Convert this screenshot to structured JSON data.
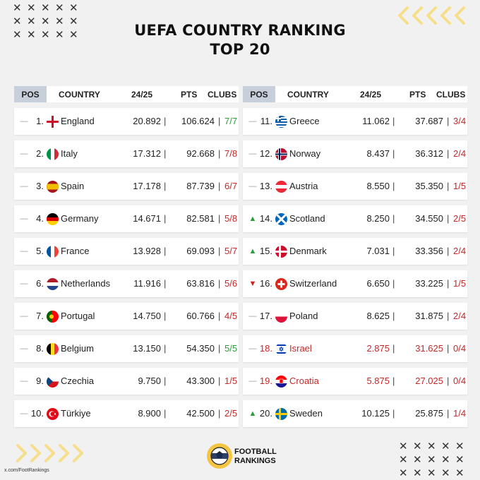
{
  "title": {
    "line1": "UEFA COUNTRY RANKING",
    "line2": "TOP 20"
  },
  "columns": {
    "pos": "POS",
    "country": "COUNTRY",
    "season": "24/25",
    "pts": "PTS",
    "clubs": "CLUBS"
  },
  "separator": "|",
  "colors": {
    "header_pos_bg": "#c7d0da",
    "accent_yellow": "#f5df8a",
    "green": "#2a9d3a",
    "red": "#c62828"
  },
  "left": [
    {
      "movement": "same",
      "rank": "1.",
      "flag": "england-flag",
      "country": "England",
      "season": "20.892",
      "pts": "106.624",
      "clubs": "7/7",
      "clubs_color": "green"
    },
    {
      "movement": "same",
      "rank": "2.",
      "flag": "italy-flag",
      "country": "Italy",
      "season": "17.312",
      "pts": "92.668",
      "clubs": "7/8",
      "clubs_color": "red"
    },
    {
      "movement": "same",
      "rank": "3.",
      "flag": "spain-flag",
      "country": "Spain",
      "season": "17.178",
      "pts": "87.739",
      "clubs": "6/7",
      "clubs_color": "red"
    },
    {
      "movement": "same",
      "rank": "4.",
      "flag": "germany-flag",
      "country": "Germany",
      "season": "14.671",
      "pts": "82.581",
      "clubs": "5/8",
      "clubs_color": "red"
    },
    {
      "movement": "same",
      "rank": "5.",
      "flag": "france-flag",
      "country": "France",
      "season": "13.928",
      "pts": "69.093",
      "clubs": "5/7",
      "clubs_color": "red"
    },
    {
      "movement": "same",
      "rank": "6.",
      "flag": "netherlands-flag",
      "country": "Netherlands",
      "season": "11.916",
      "pts": "63.816",
      "clubs": "5/6",
      "clubs_color": "red"
    },
    {
      "movement": "same",
      "rank": "7.",
      "flag": "portugal-flag",
      "country": "Portugal",
      "season": "14.750",
      "pts": "60.766",
      "clubs": "4/5",
      "clubs_color": "red"
    },
    {
      "movement": "same",
      "rank": "8.",
      "flag": "belgium-flag",
      "country": "Belgium",
      "season": "13.150",
      "pts": "54.350",
      "clubs": "5/5",
      "clubs_color": "green"
    },
    {
      "movement": "same",
      "rank": "9.",
      "flag": "czechia-flag",
      "country": "Czechia",
      "season": "9.750",
      "pts": "43.300",
      "clubs": "1/5",
      "clubs_color": "red"
    },
    {
      "movement": "same",
      "rank": "10.",
      "flag": "turkiye-flag",
      "country": "Türkiye",
      "season": "8.900",
      "pts": "42.500",
      "clubs": "2/5",
      "clubs_color": "red"
    }
  ],
  "right": [
    {
      "movement": "same",
      "rank": "11.",
      "flag": "greece-flag",
      "country": "Greece",
      "season": "11.062",
      "pts": "37.687",
      "clubs": "3/4",
      "clubs_color": "red"
    },
    {
      "movement": "same",
      "rank": "12.",
      "flag": "norway-flag",
      "country": "Norway",
      "season": "8.437",
      "pts": "36.312",
      "clubs": "2/4",
      "clubs_color": "red"
    },
    {
      "movement": "same",
      "rank": "13.",
      "flag": "austria-flag",
      "country": "Austria",
      "season": "8.550",
      "pts": "35.350",
      "clubs": "1/5",
      "clubs_color": "red"
    },
    {
      "movement": "up",
      "rank": "14.",
      "flag": "scotland-flag",
      "country": "Scotland",
      "season": "8.250",
      "pts": "34.550",
      "clubs": "2/5",
      "clubs_color": "red"
    },
    {
      "movement": "up",
      "rank": "15.",
      "flag": "denmark-flag",
      "country": "Denmark",
      "season": "7.031",
      "pts": "33.356",
      "clubs": "2/4",
      "clubs_color": "red"
    },
    {
      "movement": "down",
      "rank": "16.",
      "flag": "switzerland-flag",
      "country": "Switzerland",
      "season": "6.650",
      "pts": "33.225",
      "clubs": "1/5",
      "clubs_color": "red"
    },
    {
      "movement": "same",
      "rank": "17.",
      "flag": "poland-flag",
      "country": "Poland",
      "season": "8.625",
      "pts": "31.875",
      "clubs": "2/4",
      "clubs_color": "red"
    },
    {
      "movement": "same",
      "rank": "18.",
      "flag": "israel-flag",
      "country": "Israel",
      "season": "2.875",
      "pts": "31.625",
      "clubs": "0/4",
      "clubs_color": "red",
      "highlight": "red"
    },
    {
      "movement": "same",
      "rank": "19.",
      "flag": "croatia-flag",
      "country": "Croatia",
      "season": "5.875",
      "pts": "27.025",
      "clubs": "0/4",
      "clubs_color": "red",
      "highlight": "red"
    },
    {
      "movement": "up",
      "rank": "20.",
      "flag": "sweden-flag",
      "country": "Sweden",
      "season": "10.125",
      "pts": "25.875",
      "clubs": "1/4",
      "clubs_color": "red"
    }
  ],
  "footer": {
    "brand_line1": "FOOTBALL",
    "brand_line2": "RANKINGS",
    "handle": "x.com/FootRankings",
    "logo": "football-rankings-logo"
  }
}
